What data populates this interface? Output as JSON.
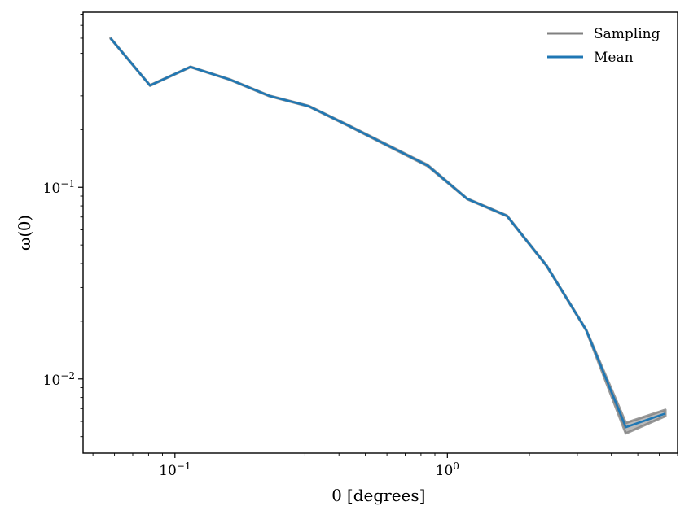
{
  "chart_data": {
    "type": "line",
    "xscale": "log",
    "yscale": "log",
    "xlim": [
      0.046,
      7.0
    ],
    "ylim": [
      0.0041,
      0.82
    ],
    "xlabel": "θ [degrees]",
    "ylabel": "ω(θ)",
    "x_tick_labels": [
      {
        "value": 0.1,
        "base": "10",
        "exp": "−1"
      },
      {
        "value": 1,
        "base": "10",
        "exp": "0"
      }
    ],
    "y_tick_labels": [
      {
        "value": 0.01,
        "base": "10",
        "exp": "−2"
      },
      {
        "value": 0.1,
        "base": "10",
        "exp": "−1"
      }
    ],
    "legend": {
      "position": "top-right",
      "entries": [
        {
          "label": "Sampling",
          "color": "#808080"
        },
        {
          "label": "Mean",
          "color": "#1f77b4"
        }
      ]
    },
    "x": [
      0.058,
      0.081,
      0.114,
      0.159,
      0.222,
      0.31,
      0.433,
      0.606,
      0.846,
      1.183,
      1.654,
      2.312,
      3.232,
      4.518,
      6.314
    ],
    "series": [
      {
        "name": "Mean",
        "color": "#1f77b4",
        "values": [
          0.6,
          0.34,
          0.425,
          0.365,
          0.3,
          0.265,
          0.21,
          0.165,
          0.13,
          0.087,
          0.071,
          0.039,
          0.018,
          0.0056,
          0.0066
        ]
      },
      {
        "name": "Sampling",
        "color": "#808080",
        "band_low": [
          0.598,
          0.339,
          0.424,
          0.364,
          0.299,
          0.264,
          0.209,
          0.164,
          0.129,
          0.0867,
          0.0707,
          0.0388,
          0.0179,
          0.0052,
          0.0064
        ],
        "band_high": [
          0.602,
          0.341,
          0.426,
          0.366,
          0.301,
          0.266,
          0.211,
          0.166,
          0.131,
          0.0873,
          0.0713,
          0.0392,
          0.0181,
          0.0059,
          0.0069
        ]
      }
    ]
  }
}
